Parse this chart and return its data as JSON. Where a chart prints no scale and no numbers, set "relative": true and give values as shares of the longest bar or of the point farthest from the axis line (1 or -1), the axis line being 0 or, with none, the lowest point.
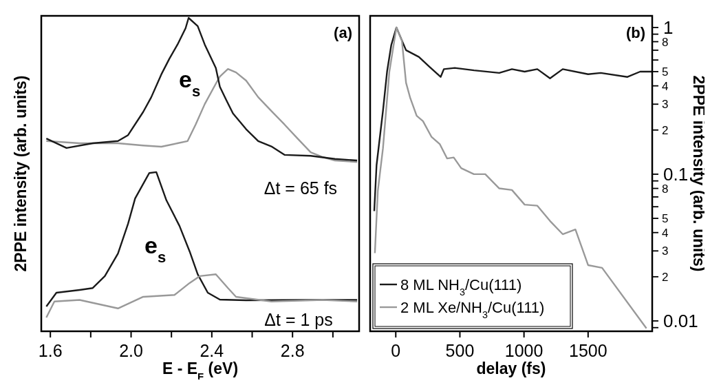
{
  "chart_data": [
    {
      "type": "line",
      "relative": true,
      "ylabel": "2PPE intensity (arb. units)",
      "xlabel": "E - E$_{F}$ (eV)",
      "xlim": [
        1.555,
        3.13
      ],
      "xticks": [
        1.6,
        {
          "value": 1.8,
          "label": null
        },
        {
          "value": 2.0,
          "label": "2.0"
        },
        {
          "value": 2.2,
          "label": null
        },
        2.4,
        {
          "value": 2.6,
          "label": null
        },
        2.8,
        {
          "value": 3.0,
          "label": null
        }
      ],
      "tick_labels": "x",
      "legend": false,
      "line_style": "solid",
      "marker": "none",
      "annotations": [
        "(a)",
        "e$_{s}$",
        "Δt = 65 fs",
        "e$_{s}$",
        "Δt = 1 ps"
      ],
      "series": [
        {
          "color": "#999999",
          "x": [
            1.58,
            1.745,
            1.935,
            2.06,
            2.15,
            2.23,
            2.28,
            2.32,
            2.365,
            2.42,
            2.44,
            2.48,
            2.52,
            2.57,
            2.63,
            2.695,
            2.76,
            2.825,
            2.89,
            2.95,
            3.01,
            3.12
          ],
          "values": [
            0.607,
            0.6,
            0.6,
            0.593,
            0.589,
            0.6,
            0.607,
            0.66,
            0.725,
            0.79,
            0.813,
            0.837,
            0.826,
            0.8,
            0.747,
            0.703,
            0.66,
            0.615,
            0.571,
            0.556,
            0.545,
            0.54
          ]
        },
        {
          "color": "#1a1a1a",
          "x": [
            1.58,
            1.68,
            1.81,
            1.935,
            1.985,
            2.06,
            2.1,
            2.15,
            2.19,
            2.23,
            2.27,
            2.285,
            2.33,
            2.365,
            2.42,
            2.44,
            2.47,
            2.505,
            2.57,
            2.63,
            2.695,
            2.76,
            2.89,
            3.01,
            3.12
          ],
          "values": [
            0.615,
            0.585,
            0.6,
            0.607,
            0.626,
            0.7,
            0.747,
            0.82,
            0.87,
            0.915,
            0.967,
            1,
            0.974,
            0.915,
            0.84,
            0.78,
            0.74,
            0.695,
            0.645,
            0.607,
            0.59,
            0.563,
            0.56,
            0.55,
            0.545
          ]
        },
        {
          "color": "#1a1a1a",
          "x": [
            1.58,
            1.63,
            1.745,
            1.81,
            1.87,
            1.935,
            1.985,
            2.02,
            2.09,
            2.125,
            2.175,
            2.24,
            2.29,
            2.33,
            2.38,
            2.44,
            2.57,
            2.82,
            3.12
          ],
          "values": [
            0.079,
            0.123,
            0.132,
            0.138,
            0.176,
            0.248,
            0.343,
            0.424,
            0.505,
            0.508,
            0.418,
            0.336,
            0.255,
            0.182,
            0.123,
            0.101,
            0.099,
            0.1,
            0.1
          ]
        },
        {
          "color": "#999999",
          "x": [
            1.58,
            1.62,
            1.745,
            1.935,
            2.06,
            2.215,
            2.29,
            2.34,
            2.42,
            2.48,
            2.52,
            2.695,
            2.95,
            3.12
          ],
          "values": [
            0.044,
            0.095,
            0.1,
            0.073,
            0.11,
            0.116,
            0.154,
            0.176,
            0.182,
            0.138,
            0.11,
            0.095,
            0.1,
            0.095
          ]
        }
      ]
    },
    {
      "type": "line",
      "xlabel": "delay (fs)",
      "y2label": "2PPE intensity (arb. units)",
      "xlim": [
        -200,
        2000
      ],
      "xticks": [
        0,
        500,
        1000,
        1500
      ],
      "log": "y2",
      "y2lim": [
        0.0085,
        1.2
      ],
      "y2ticks": [
        1,
        {
          "value": 0.9,
          "label": null
        },
        {
          "value": 0.8,
          "label": null
        },
        {
          "value": 0.7,
          "label": null
        },
        {
          "value": 0.6,
          "label": null
        },
        {
          "value": 0.5,
          "label": null
        },
        {
          "value": 0.4,
          "label": null
        },
        {
          "value": 0.3,
          "label": null
        },
        {
          "value": 0.2,
          "label": null
        },
        0.1,
        {
          "value": 0.09,
          "label": null
        },
        {
          "value": 0.08,
          "label": null
        },
        {
          "value": 0.07,
          "label": null
        },
        {
          "value": 0.06,
          "label": null
        },
        {
          "value": 0.05,
          "label": null
        },
        {
          "value": 0.04,
          "label": null
        },
        {
          "value": 0.03,
          "label": null
        },
        {
          "value": 0.02,
          "label": null
        },
        0.01,
        {
          "value": 0.009,
          "label": null
        }
      ],
      "legend": "bottom left",
      "line_style": "solid",
      "marker": "none",
      "annotations": [
        "(b)",
        "8",
        "5",
        "4",
        "3",
        "2",
        "8",
        "5",
        "4",
        "3",
        "2"
      ],
      "series": [
        {
          "name": "8 ML NH$_{3}$/Cu(111)",
          "color": "#1a1a1a",
          "axis": "y2",
          "x": [
            -168,
            -150,
            -100,
            -68,
            -35,
            5,
            80,
            180,
            262,
            350,
            375,
            460,
            610,
            807,
            906,
            1005,
            1104,
            1203,
            1302,
            1500,
            1599,
            1807,
            1906,
            1995
          ],
          "values": [
            0.056,
            0.115,
            0.27,
            0.5,
            0.76,
            1,
            0.7,
            0.63,
            0.54,
            0.46,
            0.52,
            0.53,
            0.51,
            0.49,
            0.52,
            0.5,
            0.52,
            0.45,
            0.52,
            0.48,
            0.49,
            0.46,
            0.5,
            0.5
          ]
        },
        {
          "name": "2 ML Xe/NH$_{3}$/Cu(111)",
          "color": "#999999",
          "axis": "y2",
          "x": [
            -163,
            -140,
            -100,
            -50,
            5,
            48,
            80,
            113,
            163,
            212,
            278,
            344,
            400,
            452,
            510,
            609,
            698,
            807,
            906,
            1005,
            1104,
            1203,
            1302,
            1401,
            1500,
            1609,
            1955
          ],
          "values": [
            0.029,
            0.077,
            0.15,
            0.5,
            1,
            0.81,
            0.42,
            0.33,
            0.25,
            0.23,
            0.18,
            0.16,
            0.128,
            0.13,
            0.11,
            0.1,
            0.1,
            0.08,
            0.078,
            0.062,
            0.061,
            0.048,
            0.039,
            0.042,
            0.024,
            0.023,
            0.0089
          ]
        }
      ]
    }
  ]
}
